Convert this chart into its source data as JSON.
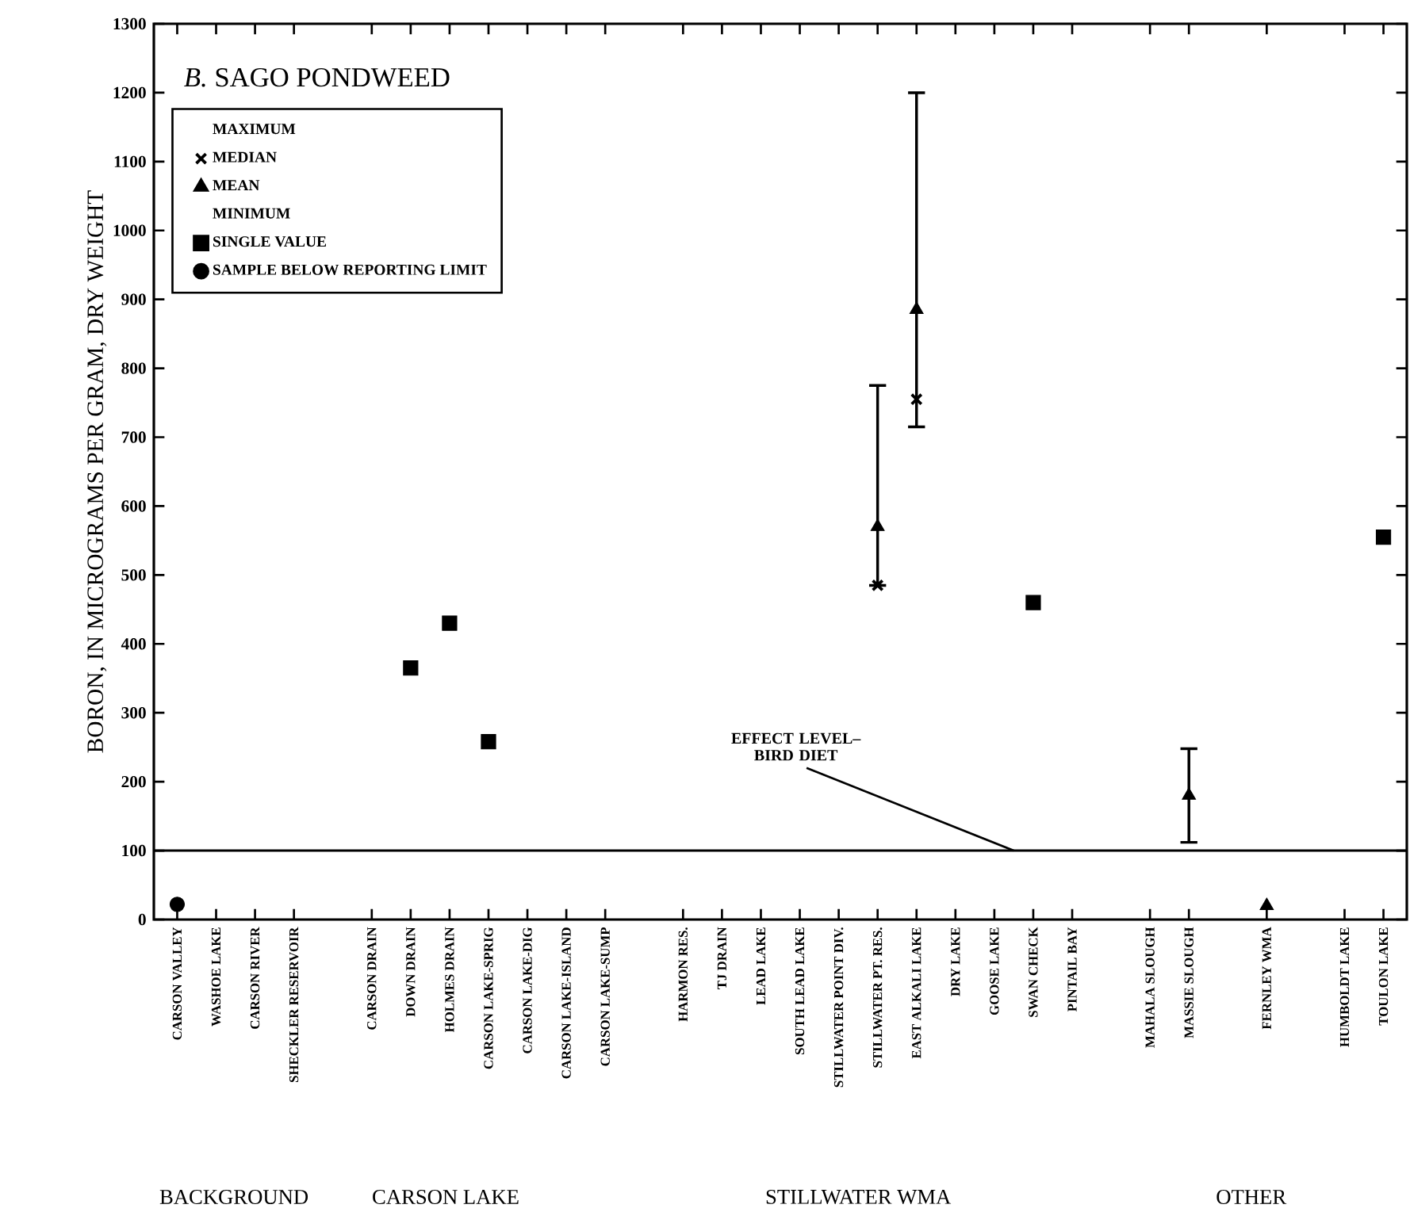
{
  "chart_data": {
    "type": "scatter",
    "title": "*B.* SAGO PONDWEED",
    "ylabel": "BORON, IN MICROGRAMS PER GRAM, DRY WEIGHT",
    "categories": [
      "CARSON VALLEY",
      "WASHOE LAKE",
      "CARSON RIVER",
      "SHECKLER RESERVOIR",
      null,
      "CARSON DRAIN",
      "DOWN DRAIN",
      "HOLMES DRAIN",
      "CARSON LAKE-SPRIG",
      "CARSON LAKE-DIG",
      "CARSON LAKE-ISLAND",
      "CARSON LAKE-SUMP",
      null,
      "HARMON RES.",
      "TJ DRAIN",
      "LEAD LAKE",
      "SOUTH LEAD LAKE",
      "STILLWATER POINT DIV.",
      "STILLWATER PT. RES.",
      "EAST ALKALI LAKE",
      "DRY LAKE",
      "GOOSE LAKE",
      "SWAN CHECK",
      "PINTAIL BAY",
      null,
      "MAHALA SLOUGH",
      "MASSIE SLOUGH",
      null,
      "FERNLEY WMA",
      null,
      "HUMBOLDT LAKE",
      "TOULON LAKE"
    ],
    "series": [
      {
        "name": "MEDIAN",
        "color": "#000000",
        "marker": "cross",
        "values": [
          null,
          null,
          null,
          null,
          null,
          null,
          null,
          null,
          null,
          null,
          null,
          null,
          null,
          null,
          null,
          null,
          null,
          null,
          485,
          755,
          null,
          null,
          null,
          null,
          null,
          null,
          null,
          null,
          null,
          null,
          null,
          null
        ]
      },
      {
        "name": "MEAN",
        "color": "#000000",
        "marker": "triangle",
        "values": [
          null,
          null,
          null,
          null,
          null,
          null,
          null,
          null,
          null,
          null,
          null,
          null,
          null,
          null,
          null,
          null,
          null,
          null,
          570,
          885,
          null,
          null,
          null,
          null,
          null,
          null,
          180,
          null,
          20,
          null,
          null,
          null
        ],
        "errors": [
          null,
          null,
          null,
          null,
          null,
          null,
          null,
          null,
          null,
          null,
          null,
          null,
          null,
          null,
          null,
          null,
          null,
          null,
          [
            485,
            775
          ],
          [
            715,
            1200
          ],
          null,
          null,
          null,
          null,
          null,
          null,
          [
            112,
            248
          ],
          null,
          null,
          null,
          null,
          null
        ]
      },
      {
        "name": "SINGLE VALUE",
        "color": "#000000",
        "marker": "square",
        "values": [
          null,
          null,
          null,
          null,
          null,
          null,
          365,
          430,
          258,
          null,
          null,
          null,
          null,
          null,
          null,
          null,
          null,
          null,
          null,
          null,
          null,
          null,
          460,
          null,
          null,
          null,
          null,
          null,
          null,
          null,
          null,
          555
        ]
      },
      {
        "name": "SAMPLE BELOW REPORTING LIMIT",
        "color": "#000000",
        "marker": "circle",
        "values": [
          22,
          null,
          null,
          null,
          null,
          null,
          null,
          null,
          null,
          null,
          null,
          null,
          null,
          null,
          null,
          null,
          null,
          null,
          null,
          null,
          null,
          null,
          null,
          null,
          null,
          null,
          null,
          null,
          null,
          null,
          null,
          null
        ]
      }
    ],
    "ylim": [
      0,
      1300
    ],
    "yticks": [
      0,
      100,
      200,
      300,
      400,
      500,
      600,
      700,
      800,
      900,
      1000,
      1100,
      1200,
      1300
    ],
    "ref_lines": [
      {
        "axis": "y",
        "value": 100,
        "label": "EFFECT LEVEL– BIRD DIET",
        "color": "#000000"
      }
    ],
    "legend": "top left",
    "grid": false,
    "annotations": [
      "MAXIMUM",
      "MINIMUM",
      "BACKGROUND",
      "CARSON LAKE",
      "STILLWATER WMA",
      "OTHER"
    ]
  }
}
